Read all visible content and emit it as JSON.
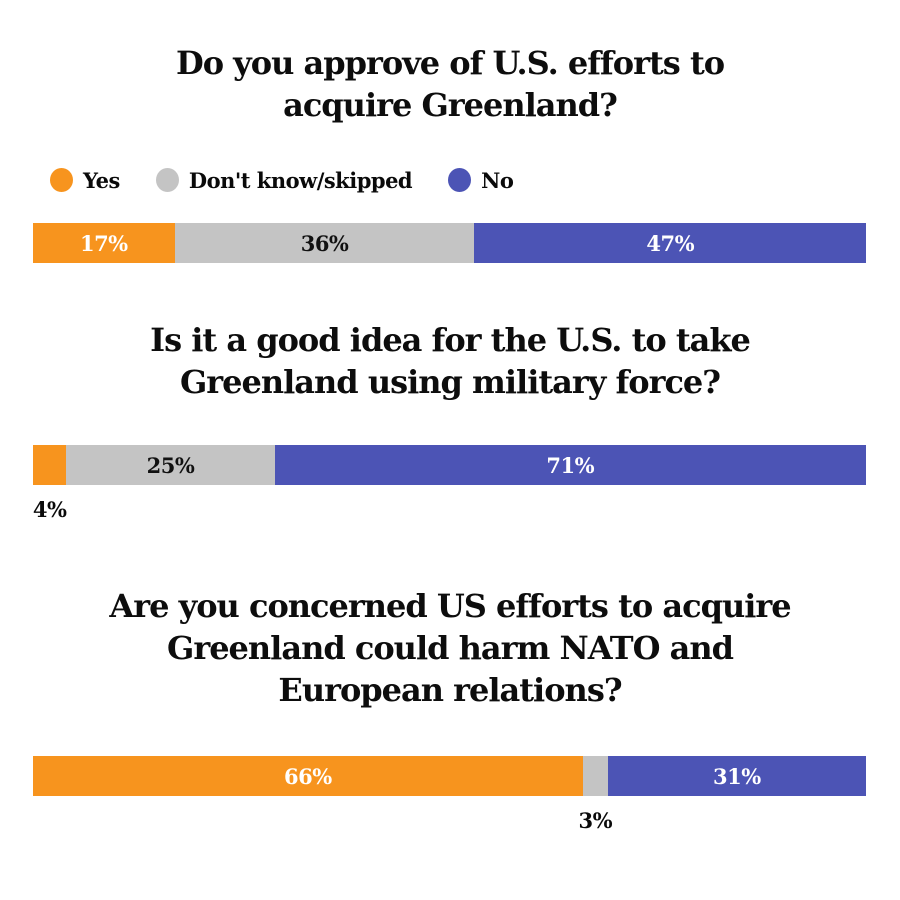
{
  "page": {
    "background": "#FFFFFF"
  },
  "colors": {
    "yes": "#F7941E",
    "dont_know": "#C4C4C4",
    "no": "#4C54B5",
    "label_on_color": "#FFFFFF",
    "label_on_gray": "#111111",
    "label_below": "#0A0A0A"
  },
  "legend": {
    "items": [
      {
        "id": "yes",
        "label": "Yes",
        "color": "#F7941E"
      },
      {
        "id": "dont-know",
        "label": "Don't know/skipped",
        "color": "#C4C4C4"
      },
      {
        "id": "no",
        "label": "No",
        "color": "#4C54B5"
      }
    ]
  },
  "chart_data": [
    {
      "type": "bar",
      "stacked": true,
      "orientation": "horizontal",
      "title": "Do you approve of U.S. efforts to acquire Greenland?",
      "title_lines": [
        "Do you approve of U.S. efforts to",
        "acquire Greenland?"
      ],
      "categories": [
        "Yes",
        "Don't know/skipped",
        "No"
      ],
      "values": [
        17,
        36,
        47
      ],
      "xlim": [
        0,
        100
      ],
      "legend_position": "top-left",
      "grid": false,
      "segments": [
        {
          "category": "Yes",
          "value": 17,
          "label": "17%",
          "color": "#F7941E",
          "label_color": "#FFFFFF",
          "label_position": "inside"
        },
        {
          "category": "Don't know/skipped",
          "value": 36,
          "label": "36%",
          "color": "#C4C4C4",
          "label_color": "#111111",
          "label_position": "inside"
        },
        {
          "category": "No",
          "value": 47,
          "label": "47%",
          "color": "#4C54B5",
          "label_color": "#FFFFFF",
          "label_position": "inside"
        }
      ]
    },
    {
      "type": "bar",
      "stacked": true,
      "orientation": "horizontal",
      "title": "Is it a good idea for the U.S. to take Greenland using military force?",
      "title_lines": [
        "Is it a good idea for the U.S. to take",
        "Greenland using military force?"
      ],
      "categories": [
        "Yes",
        "Don't know/skipped",
        "No"
      ],
      "values": [
        4,
        25,
        71
      ],
      "xlim": [
        0,
        100
      ],
      "legend_position": "none",
      "grid": false,
      "segments": [
        {
          "category": "Yes",
          "value": 4,
          "label": "4%",
          "color": "#F7941E",
          "label_color": "#0A0A0A",
          "label_position": "below"
        },
        {
          "category": "Don't know/skipped",
          "value": 25,
          "label": "25%",
          "color": "#C4C4C4",
          "label_color": "#111111",
          "label_position": "inside"
        },
        {
          "category": "No",
          "value": 71,
          "label": "71%",
          "color": "#4C54B5",
          "label_color": "#FFFFFF",
          "label_position": "inside"
        }
      ]
    },
    {
      "type": "bar",
      "stacked": true,
      "orientation": "horizontal",
      "title": "Are you concerned US efforts to acquire Greenland could harm NATO and European relations?",
      "title_lines": [
        "Are you concerned US efforts to acquire",
        "Greenland could harm NATO and",
        "European relations?"
      ],
      "categories": [
        "Yes",
        "Don't know/skipped",
        "No"
      ],
      "values": [
        66,
        3,
        31
      ],
      "xlim": [
        0,
        100
      ],
      "legend_position": "none",
      "grid": false,
      "segments": [
        {
          "category": "Yes",
          "value": 66,
          "label": "66%",
          "color": "#F7941E",
          "label_color": "#FFFFFF",
          "label_position": "inside"
        },
        {
          "category": "Don't know/skipped",
          "value": 3,
          "label": "3%",
          "color": "#C4C4C4",
          "label_color": "#0A0A0A",
          "label_position": "below"
        },
        {
          "category": "No",
          "value": 31,
          "label": "31%",
          "color": "#4C54B5",
          "label_color": "#FFFFFF",
          "label_position": "inside"
        }
      ]
    }
  ]
}
